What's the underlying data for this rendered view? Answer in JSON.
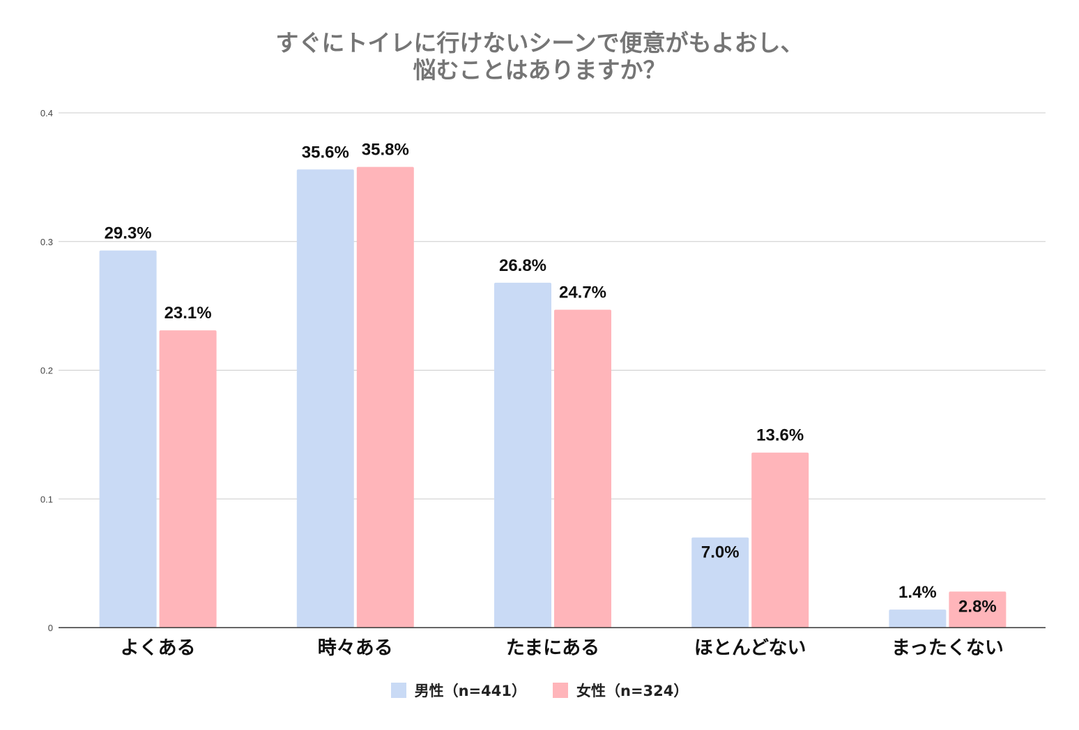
{
  "chart_data": {
    "type": "bar",
    "title_lines": [
      "すぐにトイレに行けないシーンで便意がもよおし、",
      "悩むことはありますか？"
    ],
    "categories": [
      "よくある",
      "時々ある",
      "たまにある",
      "ほとんどない",
      "まったくない"
    ],
    "series": [
      {
        "name": "男性（n=441）",
        "color": "#c9daf5",
        "values": [
          0.293,
          0.356,
          0.268,
          0.07,
          0.014
        ],
        "labels": [
          "29.3%",
          "35.6%",
          "26.8%",
          "7.0%",
          "1.4%"
        ]
      },
      {
        "name": "女性（n=324）",
        "color": "#ffb5ba",
        "values": [
          0.231,
          0.358,
          0.247,
          0.136,
          0.028
        ],
        "labels": [
          "23.1%",
          "35.8%",
          "24.7%",
          "13.6%",
          "2.8%"
        ]
      }
    ],
    "yticks": [
      "0",
      "0.1",
      "0.2",
      "0.3",
      "0.4"
    ],
    "ylim": [
      0,
      0.4
    ],
    "grid": true,
    "legend_position": "bottom"
  }
}
